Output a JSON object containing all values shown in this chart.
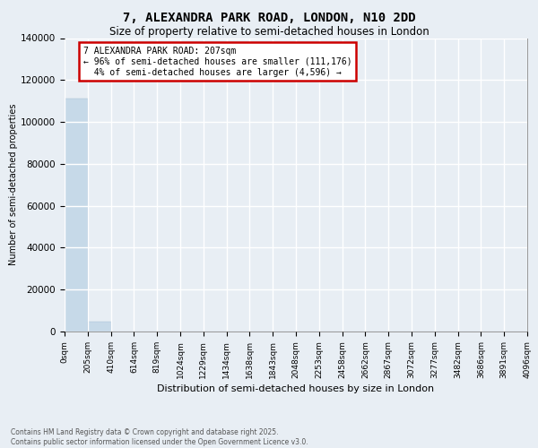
{
  "title_line1": "7, ALEXANDRA PARK ROAD, LONDON, N10 2DD",
  "title_line2": "Size of property relative to semi-detached houses in London",
  "xlabel": "Distribution of semi-detached houses by size in London",
  "ylabel": "Number of semi-detached properties",
  "annotation_title": "7 ALEXANDRA PARK ROAD: 207sqm",
  "annotation_line2": "← 96% of semi-detached houses are smaller (111,176)",
  "annotation_line3": "4% of semi-detached houses are larger (4,596) →",
  "footer_line1": "Contains HM Land Registry data © Crown copyright and database right 2025.",
  "footer_line2": "Contains public sector information licensed under the Open Government Licence v3.0.",
  "bin_labels": [
    "0sqm",
    "205sqm",
    "410sqm",
    "614sqm",
    "819sqm",
    "1024sqm",
    "1229sqm",
    "1434sqm",
    "1638sqm",
    "1843sqm",
    "2048sqm",
    "2253sqm",
    "2458sqm",
    "2662sqm",
    "2867sqm",
    "3072sqm",
    "3277sqm",
    "3482sqm",
    "3686sqm",
    "3891sqm",
    "4096sqm"
  ],
  "bar_values": [
    111176,
    4596,
    0,
    0,
    0,
    0,
    0,
    0,
    0,
    0,
    0,
    0,
    0,
    0,
    0,
    0,
    0,
    0,
    0,
    0
  ],
  "bar_color": "#c6d9e8",
  "bar_edge_color": "#a0bcd0",
  "ylim": [
    0,
    140000
  ],
  "yticks": [
    0,
    20000,
    40000,
    60000,
    80000,
    100000,
    120000,
    140000
  ],
  "bg_color": "#e8eef4",
  "plot_bg_color": "#e8eef4",
  "grid_color": "#ffffff",
  "annotation_box_edgecolor": "#cc0000",
  "title_fontsize": 10,
  "subtitle_fontsize": 8.5,
  "n_bins": 20
}
